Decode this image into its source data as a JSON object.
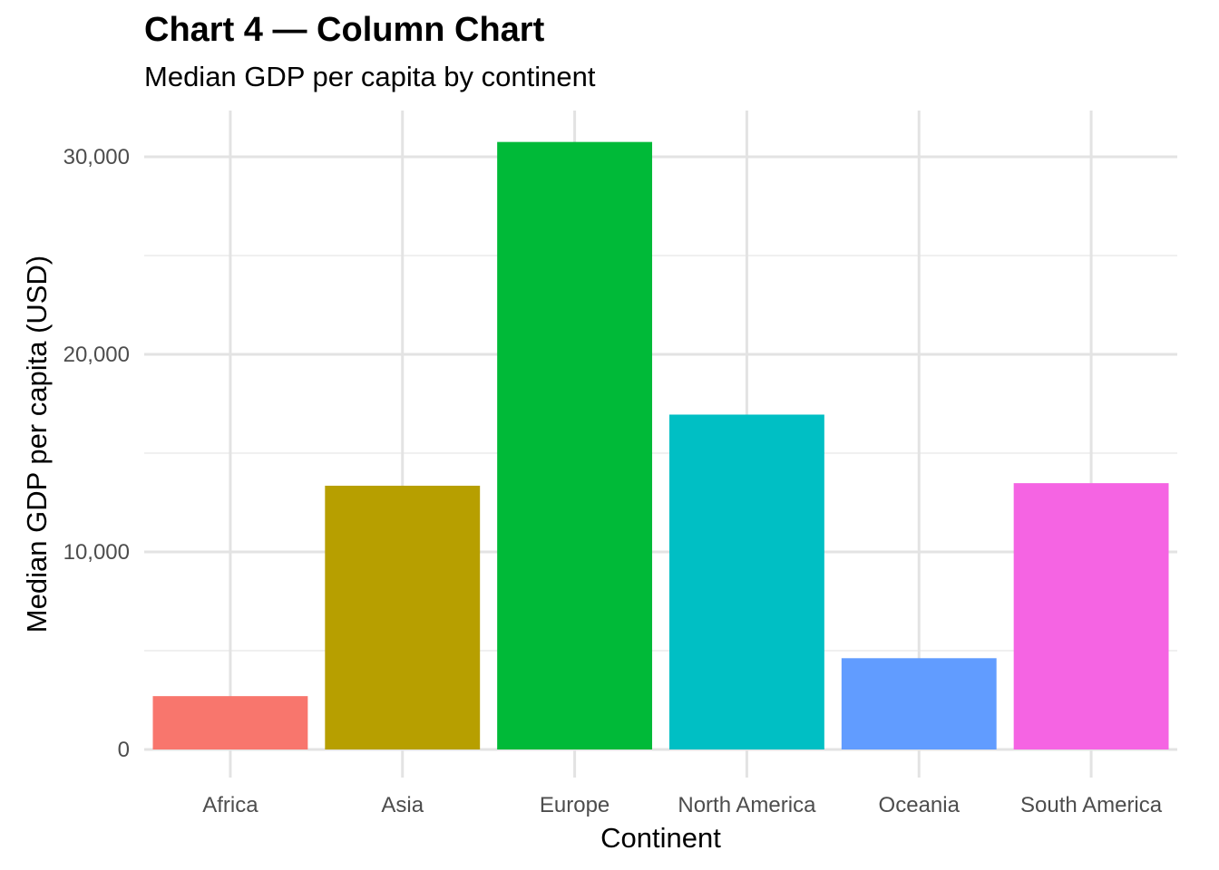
{
  "chart_data": {
    "type": "bar",
    "title": "Chart 4 — Column Chart",
    "subtitle": "Median GDP per capita by continent",
    "xlabel": "Continent",
    "ylabel": "Median GDP per capita (USD)",
    "categories": [
      "Africa",
      "Asia",
      "Europe",
      "North America",
      "Oceania",
      "South America"
    ],
    "values": [
      2700,
      13350,
      30750,
      16950,
      4620,
      13480
    ],
    "colors": [
      "#F8766D",
      "#B79F00",
      "#00BA38",
      "#00BFC4",
      "#619CFF",
      "#F564E3"
    ],
    "ylim": [
      0,
      32000
    ],
    "y_ticks": [
      0,
      10000,
      20000,
      30000
    ],
    "y_tick_labels": [
      "0",
      "10,000",
      "20,000",
      "30,000"
    ],
    "grid": true,
    "legend": "none"
  }
}
